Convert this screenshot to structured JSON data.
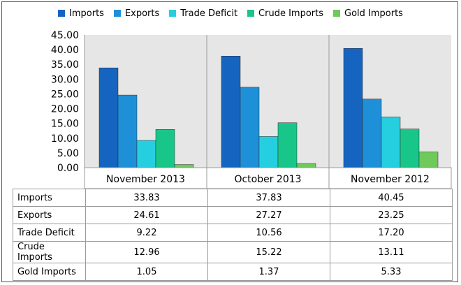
{
  "chart_data": {
    "type": "bar",
    "categories": [
      "November 2013",
      "October 2013",
      "November 2012"
    ],
    "series": [
      {
        "name": "Imports",
        "values": [
          33.83,
          37.83,
          40.45
        ],
        "color": "#1565c0"
      },
      {
        "name": "Exports",
        "values": [
          24.61,
          27.27,
          23.25
        ],
        "color": "#1e90d8"
      },
      {
        "name": "Trade Deficit",
        "values": [
          9.22,
          10.56,
          17.2
        ],
        "color": "#26cfe0"
      },
      {
        "name": "Crude Imports",
        "values": [
          12.96,
          15.22,
          13.11
        ],
        "color": "#19c68a"
      },
      {
        "name": "Gold Imports",
        "values": [
          1.05,
          1.37,
          5.33
        ],
        "color": "#6fc95b"
      }
    ],
    "y_ticks": [
      "45.00",
      "40.00",
      "35.00",
      "30.00",
      "25.00",
      "20.00",
      "15.00",
      "10.00",
      "5.00",
      "0.00"
    ],
    "ylim": [
      0,
      45
    ],
    "grid": false,
    "legend_position": "top",
    "plot_background": "#e6e6e6",
    "table": {
      "rows": [
        {
          "label": "Imports",
          "values": [
            "33.83",
            "37.83",
            "40.45"
          ]
        },
        {
          "label": "Exports",
          "values": [
            "24.61",
            "27.27",
            "23.25"
          ]
        },
        {
          "label": "Trade Deficit",
          "values": [
            "9.22",
            "10.56",
            "17.20"
          ]
        },
        {
          "label": "Crude Imports",
          "values": [
            "12.96",
            "15.22",
            "13.11"
          ]
        },
        {
          "label": "Gold Imports",
          "values": [
            "1.05",
            "1.37",
            "5.33"
          ]
        }
      ]
    }
  }
}
